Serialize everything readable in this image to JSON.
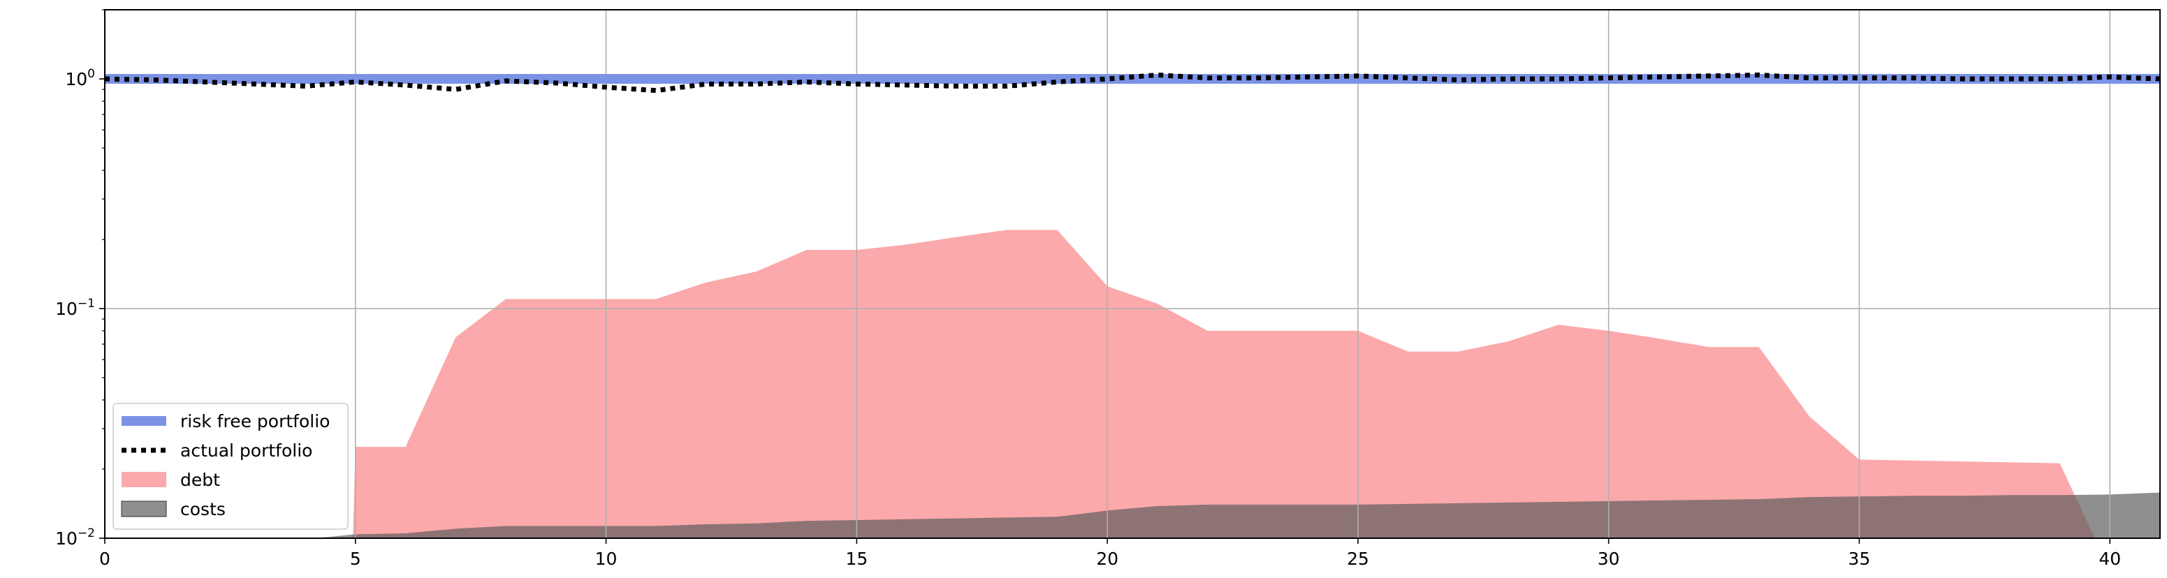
{
  "chart_data": {
    "type": "area",
    "yscale": "log",
    "xlim": [
      0,
      41
    ],
    "ylim": [
      0.01,
      2.0
    ],
    "grid": true,
    "legend_position": "lower-left",
    "x_ticks": [
      0,
      5,
      10,
      15,
      20,
      25,
      30,
      35,
      40
    ],
    "y_ticks": [
      {
        "value": 1,
        "label_base": "10",
        "label_exp": "0"
      },
      {
        "value": 0.1,
        "label_base": "10",
        "label_exp": "−1"
      },
      {
        "value": 0.01,
        "label_base": "10",
        "label_exp": "−2"
      }
    ],
    "series": [
      {
        "name": "risk free portfolio",
        "kind": "line",
        "color": "#7b93e6",
        "style": "solid",
        "x": [
          0,
          41
        ],
        "y": [
          1.0,
          1.0
        ]
      },
      {
        "name": "actual portfolio",
        "kind": "line",
        "color": "#000000",
        "style": "dotted",
        "x": [
          0,
          1,
          2,
          3,
          4,
          5,
          6,
          7,
          8,
          9,
          10,
          11,
          12,
          13,
          14,
          15,
          16,
          17,
          18,
          19,
          20,
          21,
          22,
          23,
          24,
          25,
          26,
          27,
          28,
          29,
          30,
          31,
          32,
          33,
          34,
          35,
          36,
          37,
          38,
          39,
          40,
          41
        ],
        "y": [
          1.0,
          0.99,
          0.97,
          0.95,
          0.93,
          0.97,
          0.94,
          0.9,
          0.98,
          0.96,
          0.92,
          0.89,
          0.95,
          0.95,
          0.97,
          0.95,
          0.94,
          0.93,
          0.93,
          0.97,
          1.0,
          1.04,
          1.01,
          1.01,
          1.02,
          1.03,
          1.01,
          0.99,
          1.0,
          1.0,
          1.01,
          1.02,
          1.03,
          1.04,
          1.01,
          1.01,
          1.01,
          1.0,
          1.0,
          1.0,
          1.02,
          1.0
        ]
      },
      {
        "name": "debt",
        "kind": "area",
        "color": "#fba9ab",
        "x": [
          4.95,
          5,
          6,
          7,
          8,
          9,
          10,
          11,
          12,
          13,
          14,
          15,
          16,
          17,
          18,
          19,
          20,
          21,
          22,
          23,
          24,
          25,
          26,
          27,
          28,
          29,
          30,
          31,
          32,
          33,
          34,
          35,
          36,
          37,
          38,
          39,
          39.7
        ],
        "y": [
          0.01,
          0.025,
          0.025,
          0.075,
          0.11,
          0.11,
          0.11,
          0.11,
          0.13,
          0.145,
          0.18,
          0.18,
          0.19,
          0.205,
          0.22,
          0.22,
          0.125,
          0.105,
          0.08,
          0.08,
          0.08,
          0.08,
          0.065,
          0.065,
          0.072,
          0.085,
          0.08,
          0.074,
          0.068,
          0.068,
          0.034,
          0.022,
          0.0218,
          0.0216,
          0.0214,
          0.0212,
          0.01
        ]
      },
      {
        "name": "costs",
        "kind": "area",
        "color": "#5a5a5a",
        "x": [
          0,
          4,
          5,
          6,
          7,
          8,
          9,
          10,
          11,
          12,
          13,
          14,
          15,
          16,
          17,
          18,
          19,
          20,
          21,
          22,
          23,
          24,
          25,
          26,
          27,
          28,
          29,
          30,
          31,
          32,
          33,
          34,
          35,
          36,
          37,
          38,
          39,
          40,
          41
        ],
        "y": [
          0.0098,
          0.0099,
          0.0104,
          0.0105,
          0.011,
          0.0113,
          0.0113,
          0.0113,
          0.0113,
          0.0115,
          0.0116,
          0.0119,
          0.012,
          0.0121,
          0.0122,
          0.0123,
          0.0124,
          0.0132,
          0.0138,
          0.014,
          0.014,
          0.014,
          0.014,
          0.0141,
          0.0142,
          0.0143,
          0.0144,
          0.0145,
          0.0146,
          0.0147,
          0.0148,
          0.0151,
          0.0152,
          0.0153,
          0.0153,
          0.0154,
          0.0154,
          0.0155,
          0.0158
        ]
      }
    ]
  }
}
